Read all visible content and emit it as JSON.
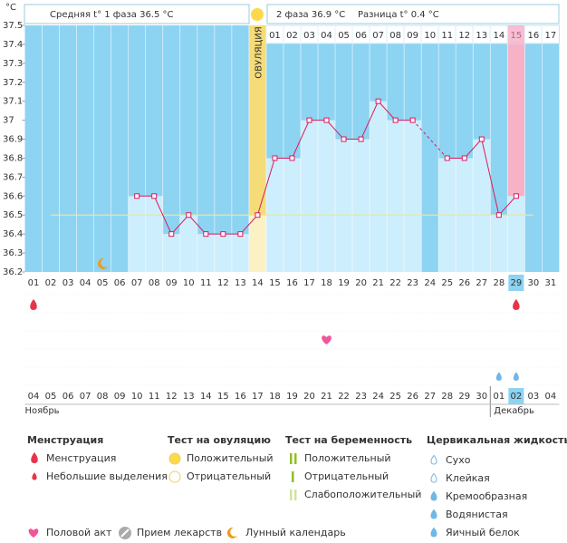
{
  "chart_data": {
    "type": "line",
    "y_unit": "°С",
    "summary": [
      "Средняя t° 1 фаза 36.5 °С",
      "2 фаза 36.9 °С",
      "Разница t° 0.4 °С"
    ],
    "ovulation_label": "ОВУЛЯЦИЯ",
    "ovulation_day": "14",
    "highlight_day": "29",
    "categories": [
      "01",
      "02",
      "03",
      "04",
      "05",
      "06",
      "07",
      "08",
      "09",
      "10",
      "11",
      "12",
      "13",
      "14",
      "15",
      "16",
      "17",
      "18",
      "19",
      "20",
      "21",
      "22",
      "23",
      "24",
      "25",
      "26",
      "27",
      "28",
      "29",
      "30",
      "31"
    ],
    "post_ovulation_start": "15",
    "post_ovulation_days": [
      "01",
      "02",
      "03",
      "04",
      "05",
      "06",
      "07",
      "08",
      "09",
      "10",
      "11",
      "12",
      "13",
      "14",
      "15",
      "16",
      "17"
    ],
    "series": [
      {
        "name": "Температура",
        "color": "#d81b60",
        "values": [
          null,
          null,
          null,
          null,
          null,
          null,
          36.6,
          36.6,
          36.4,
          36.5,
          36.4,
          36.4,
          36.4,
          36.5,
          36.8,
          36.8,
          37.0,
          37.0,
          36.9,
          36.9,
          37.1,
          37.0,
          37.0,
          null,
          36.8,
          36.8,
          36.9,
          36.5,
          36.6,
          null,
          null
        ]
      }
    ],
    "coverline": 36.5,
    "ylim": [
      36.2,
      37.5
    ],
    "yticks": [
      36.2,
      36.3,
      36.4,
      36.5,
      36.6,
      36.7,
      36.8,
      36.9,
      {
        "value": 37,
        "label": "37"
      },
      37.1,
      37.2,
      37.3,
      37.4,
      37.5
    ],
    "grid": false,
    "events": [
      {
        "day": "01",
        "kind": "menstruation"
      },
      {
        "day": "29",
        "kind": "menstruation"
      },
      {
        "day": "18",
        "kind": "intercourse"
      },
      {
        "day": "28",
        "kind": "creamy"
      },
      {
        "day": "29",
        "kind": "watery"
      },
      {
        "day": "05",
        "kind": "moon"
      }
    ],
    "dates": [
      {
        "text": "04"
      },
      {
        "text": "05",
        "weekend": true
      },
      {
        "text": "06",
        "weekend": true
      },
      {
        "text": "07"
      },
      {
        "text": "08"
      },
      {
        "text": "09"
      },
      {
        "text": "10"
      },
      {
        "text": "11"
      },
      {
        "text": "12",
        "weekend": true
      },
      {
        "text": "13",
        "weekend": true
      },
      {
        "text": "14"
      },
      {
        "text": "15"
      },
      {
        "text": "16"
      },
      {
        "text": "17"
      },
      {
        "text": "18"
      },
      {
        "text": "19",
        "weekend": true
      },
      {
        "text": "20",
        "weekend": true
      },
      {
        "text": "21"
      },
      {
        "text": "22"
      },
      {
        "text": "23"
      },
      {
        "text": "24"
      },
      {
        "text": "25"
      },
      {
        "text": "26",
        "weekend": true
      },
      {
        "text": "27",
        "weekend": true
      },
      {
        "text": "28"
      },
      {
        "text": "29"
      },
      {
        "text": "30"
      },
      {
        "text": "01"
      },
      {
        "text": "02"
      },
      {
        "text": "03",
        "weekend": true
      },
      {
        "text": "04",
        "weekend": true
      }
    ],
    "months": [
      "Ноябрь",
      "Декабрь"
    ]
  },
  "legend": {
    "columns": [
      {
        "title": "Менструация",
        "items": [
          "Менструация",
          "Небольшие выделения"
        ]
      },
      {
        "title": "Тест на овуляцию",
        "items": [
          "Положительный",
          "Отрицательный"
        ]
      },
      {
        "title": "Тест на беременность",
        "items": [
          "Положительный",
          "Отрицательный",
          "Слабоположительный"
        ]
      },
      {
        "title": "Цервикальная жидкость",
        "items": [
          "Сухо",
          "Клейкая",
          "Кремообразная",
          "Водянистая",
          "Яичный белок"
        ]
      }
    ],
    "bottom": [
      "Половой акт",
      "Прием лекарств",
      "Лунный календарь"
    ]
  }
}
